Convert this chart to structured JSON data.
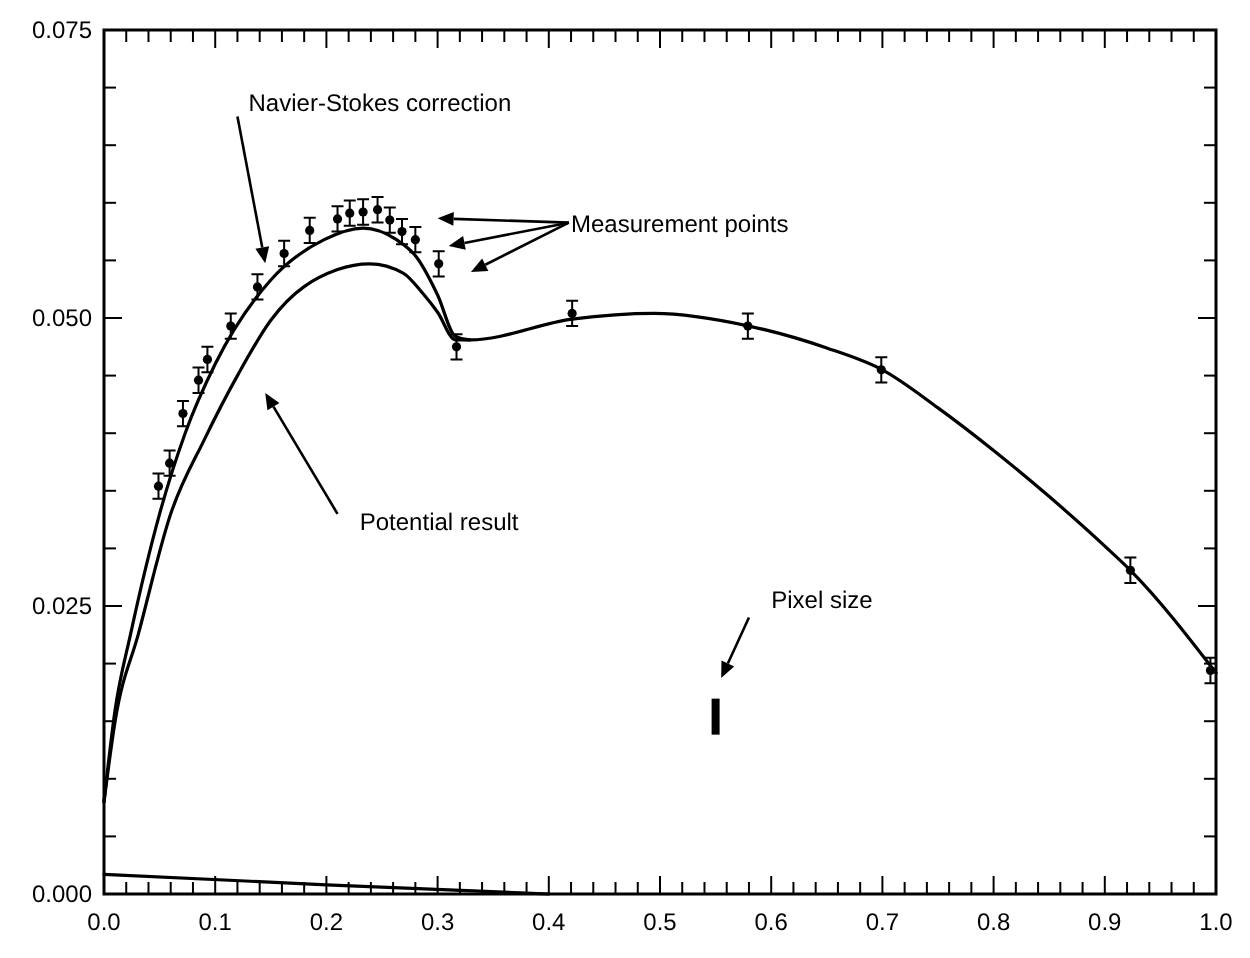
{
  "chart_data": {
    "type": "line",
    "xlim": [
      0,
      1
    ],
    "ylim": [
      0,
      0.075
    ],
    "xticks": [
      {
        "value": 0,
        "label": "0.0"
      },
      {
        "value": 0.02,
        "label": null
      },
      {
        "value": 0.04,
        "label": null
      },
      {
        "value": 0.06,
        "label": null
      },
      {
        "value": 0.08,
        "label": null
      },
      {
        "value": 0.1,
        "label": "0.1"
      },
      {
        "value": 0.12,
        "label": null
      },
      {
        "value": 0.14,
        "label": null
      },
      {
        "value": 0.16,
        "label": null
      },
      {
        "value": 0.18,
        "label": null
      },
      {
        "value": 0.2,
        "label": "0.2"
      },
      {
        "value": 0.22,
        "label": null
      },
      {
        "value": 0.24,
        "label": null
      },
      {
        "value": 0.26,
        "label": null
      },
      {
        "value": 0.28,
        "label": null
      },
      {
        "value": 0.3,
        "label": "0.3"
      },
      {
        "value": 0.32,
        "label": null
      },
      {
        "value": 0.34,
        "label": null
      },
      {
        "value": 0.36,
        "label": null
      },
      {
        "value": 0.38,
        "label": null
      },
      {
        "value": 0.4,
        "label": "0.4"
      },
      {
        "value": 0.42,
        "label": null
      },
      {
        "value": 0.44,
        "label": null
      },
      {
        "value": 0.46,
        "label": null
      },
      {
        "value": 0.48,
        "label": null
      },
      {
        "value": 0.5,
        "label": "0.5"
      },
      {
        "value": 0.52,
        "label": null
      },
      {
        "value": 0.54,
        "label": null
      },
      {
        "value": 0.56,
        "label": null
      },
      {
        "value": 0.58,
        "label": null
      },
      {
        "value": 0.6,
        "label": "0.6"
      },
      {
        "value": 0.62,
        "label": null
      },
      {
        "value": 0.64,
        "label": null
      },
      {
        "value": 0.66,
        "label": null
      },
      {
        "value": 0.68,
        "label": null
      },
      {
        "value": 0.7,
        "label": "0.7"
      },
      {
        "value": 0.72,
        "label": null
      },
      {
        "value": 0.74,
        "label": null
      },
      {
        "value": 0.76,
        "label": null
      },
      {
        "value": 0.78,
        "label": null
      },
      {
        "value": 0.8,
        "label": "0.8"
      },
      {
        "value": 0.82,
        "label": null
      },
      {
        "value": 0.84,
        "label": null
      },
      {
        "value": 0.86,
        "label": null
      },
      {
        "value": 0.88,
        "label": null
      },
      {
        "value": 0.9,
        "label": "0.9"
      },
      {
        "value": 0.92,
        "label": null
      },
      {
        "value": 0.94,
        "label": null
      },
      {
        "value": 0.96,
        "label": null
      },
      {
        "value": 0.98,
        "label": null
      },
      {
        "value": 1,
        "label": "1.0"
      }
    ],
    "yticks": [
      {
        "value": 0,
        "label": "0.000"
      },
      {
        "value": 0.005,
        "label": null
      },
      {
        "value": 0.01,
        "label": null
      },
      {
        "value": 0.015,
        "label": null
      },
      {
        "value": 0.02,
        "label": null
      },
      {
        "value": 0.025,
        "label": "0.025"
      },
      {
        "value": 0.03,
        "label": null
      },
      {
        "value": 0.035,
        "label": null
      },
      {
        "value": 0.04,
        "label": null
      },
      {
        "value": 0.045,
        "label": null
      },
      {
        "value": 0.05,
        "label": "0.050"
      },
      {
        "value": 0.055,
        "label": null
      },
      {
        "value": 0.06,
        "label": null
      },
      {
        "value": 0.065,
        "label": null
      },
      {
        "value": 0.07,
        "label": null
      },
      {
        "value": 0.075,
        "label": "0.075"
      }
    ],
    "grid": false,
    "series": [
      {
        "color": "#000000",
        "x": [
          0,
          0.01,
          0.024,
          0.05,
          0.073,
          0.1,
          0.15,
          0.198,
          0.233,
          0.263,
          0.281,
          0.3,
          0.316,
          0.329,
          0.421,
          0.495,
          0.58,
          0.65,
          0.7,
          0.75,
          0.8,
          0.85,
          0.9,
          0.923,
          1
        ],
        "values": [
          0.008,
          0.016,
          0.0226,
          0.033,
          0.04,
          0.046,
          0.0533,
          0.0568,
          0.0578,
          0.0568,
          0.0553,
          0.052,
          0.0484,
          0.0481,
          0.0499,
          0.0504,
          0.0493,
          0.0474,
          0.0455,
          0.0422,
          0.0385,
          0.0345,
          0.0302,
          0.0281,
          0.0192
        ]
      },
      {
        "color": "#000000",
        "x": [
          0,
          0.01,
          0.031,
          0.06,
          0.09,
          0.12,
          0.15,
          0.21,
          0.239,
          0.269,
          0.287,
          0.3,
          0.316,
          0.329
        ],
        "values": [
          0.008,
          0.015,
          0.0226,
          0.033,
          0.0394,
          0.045,
          0.0498,
          0.0542,
          0.0547,
          0.0539,
          0.0521,
          0.0505,
          0.0481,
          0.0481
        ]
      },
      {
        "color": "#000000",
        "x": [
          0,
          0.2,
          0.4
        ],
        "values": [
          0.0017,
          0.0008,
          0
        ]
      },
      {
        "type": "scatter",
        "color": "#000000",
        "marker": "circle",
        "x": [
          0.049,
          0.059,
          0.071,
          0.085,
          0.093,
          0.114,
          0.138,
          0.162,
          0.185,
          0.21,
          0.221,
          0.233,
          0.246,
          0.257,
          0.268,
          0.28,
          0.301,
          0.317,
          0.421,
          0.579,
          0.699,
          0.923,
          0.995
        ],
        "values": [
          0.0354,
          0.0374,
          0.0417,
          0.0446,
          0.0464,
          0.0493,
          0.0527,
          0.0556,
          0.0576,
          0.0586,
          0.0591,
          0.0592,
          0.0594,
          0.0585,
          0.0575,
          0.0568,
          0.0547,
          0.0475,
          0.0504,
          0.0493,
          0.0455,
          0.0281,
          0.0194
        ],
        "errors": [
          0.0011,
          0.0011,
          0.0011,
          0.0011,
          0.0011,
          0.0011,
          0.0011,
          0.0011,
          0.0011,
          0.0011,
          0.0011,
          0.0011,
          0.0011,
          0.0011,
          0.0011,
          0.0011,
          0.0011,
          0.0011,
          0.0011,
          0.0011,
          0.0011,
          0.0011,
          0.0011
        ]
      }
    ],
    "annotations": [
      "Navier-Stokes correction",
      "Measurement points",
      "Potential result",
      "Pixel size"
    ]
  }
}
